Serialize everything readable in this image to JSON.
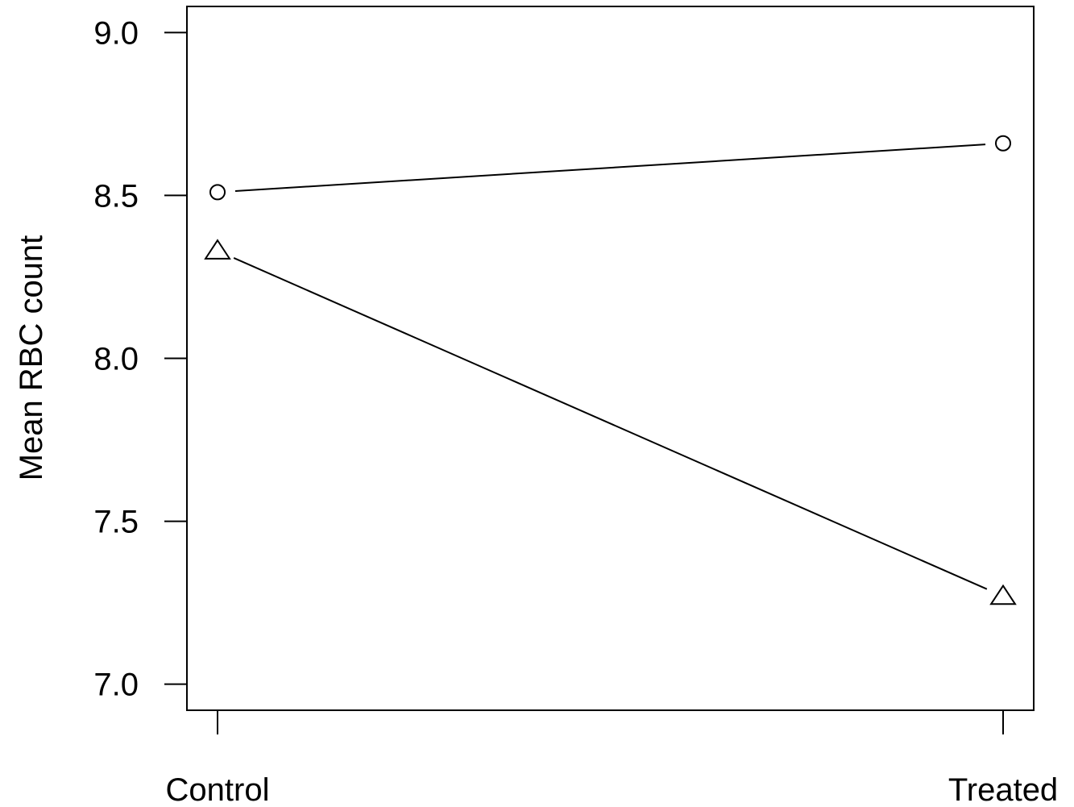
{
  "chart_data": {
    "type": "line",
    "title": "",
    "xlabel": "",
    "ylabel": "Mean RBC count",
    "categories": [
      "Control",
      "Treated"
    ],
    "ylim": [
      6.92,
      9.08
    ],
    "yticks": [
      7.0,
      7.5,
      8.0,
      8.5,
      9.0
    ],
    "ytick_labels": [
      "7.0",
      "7.5",
      "8.0",
      "8.5",
      "9.0"
    ],
    "grid": false,
    "legend": "none",
    "series": [
      {
        "marker": "circle",
        "values": [
          8.51,
          8.66
        ]
      },
      {
        "marker": "triangle",
        "values": [
          8.33,
          7.27
        ]
      }
    ],
    "colors": {
      "line": "#000000",
      "marker_fill": "#ffffff"
    }
  }
}
